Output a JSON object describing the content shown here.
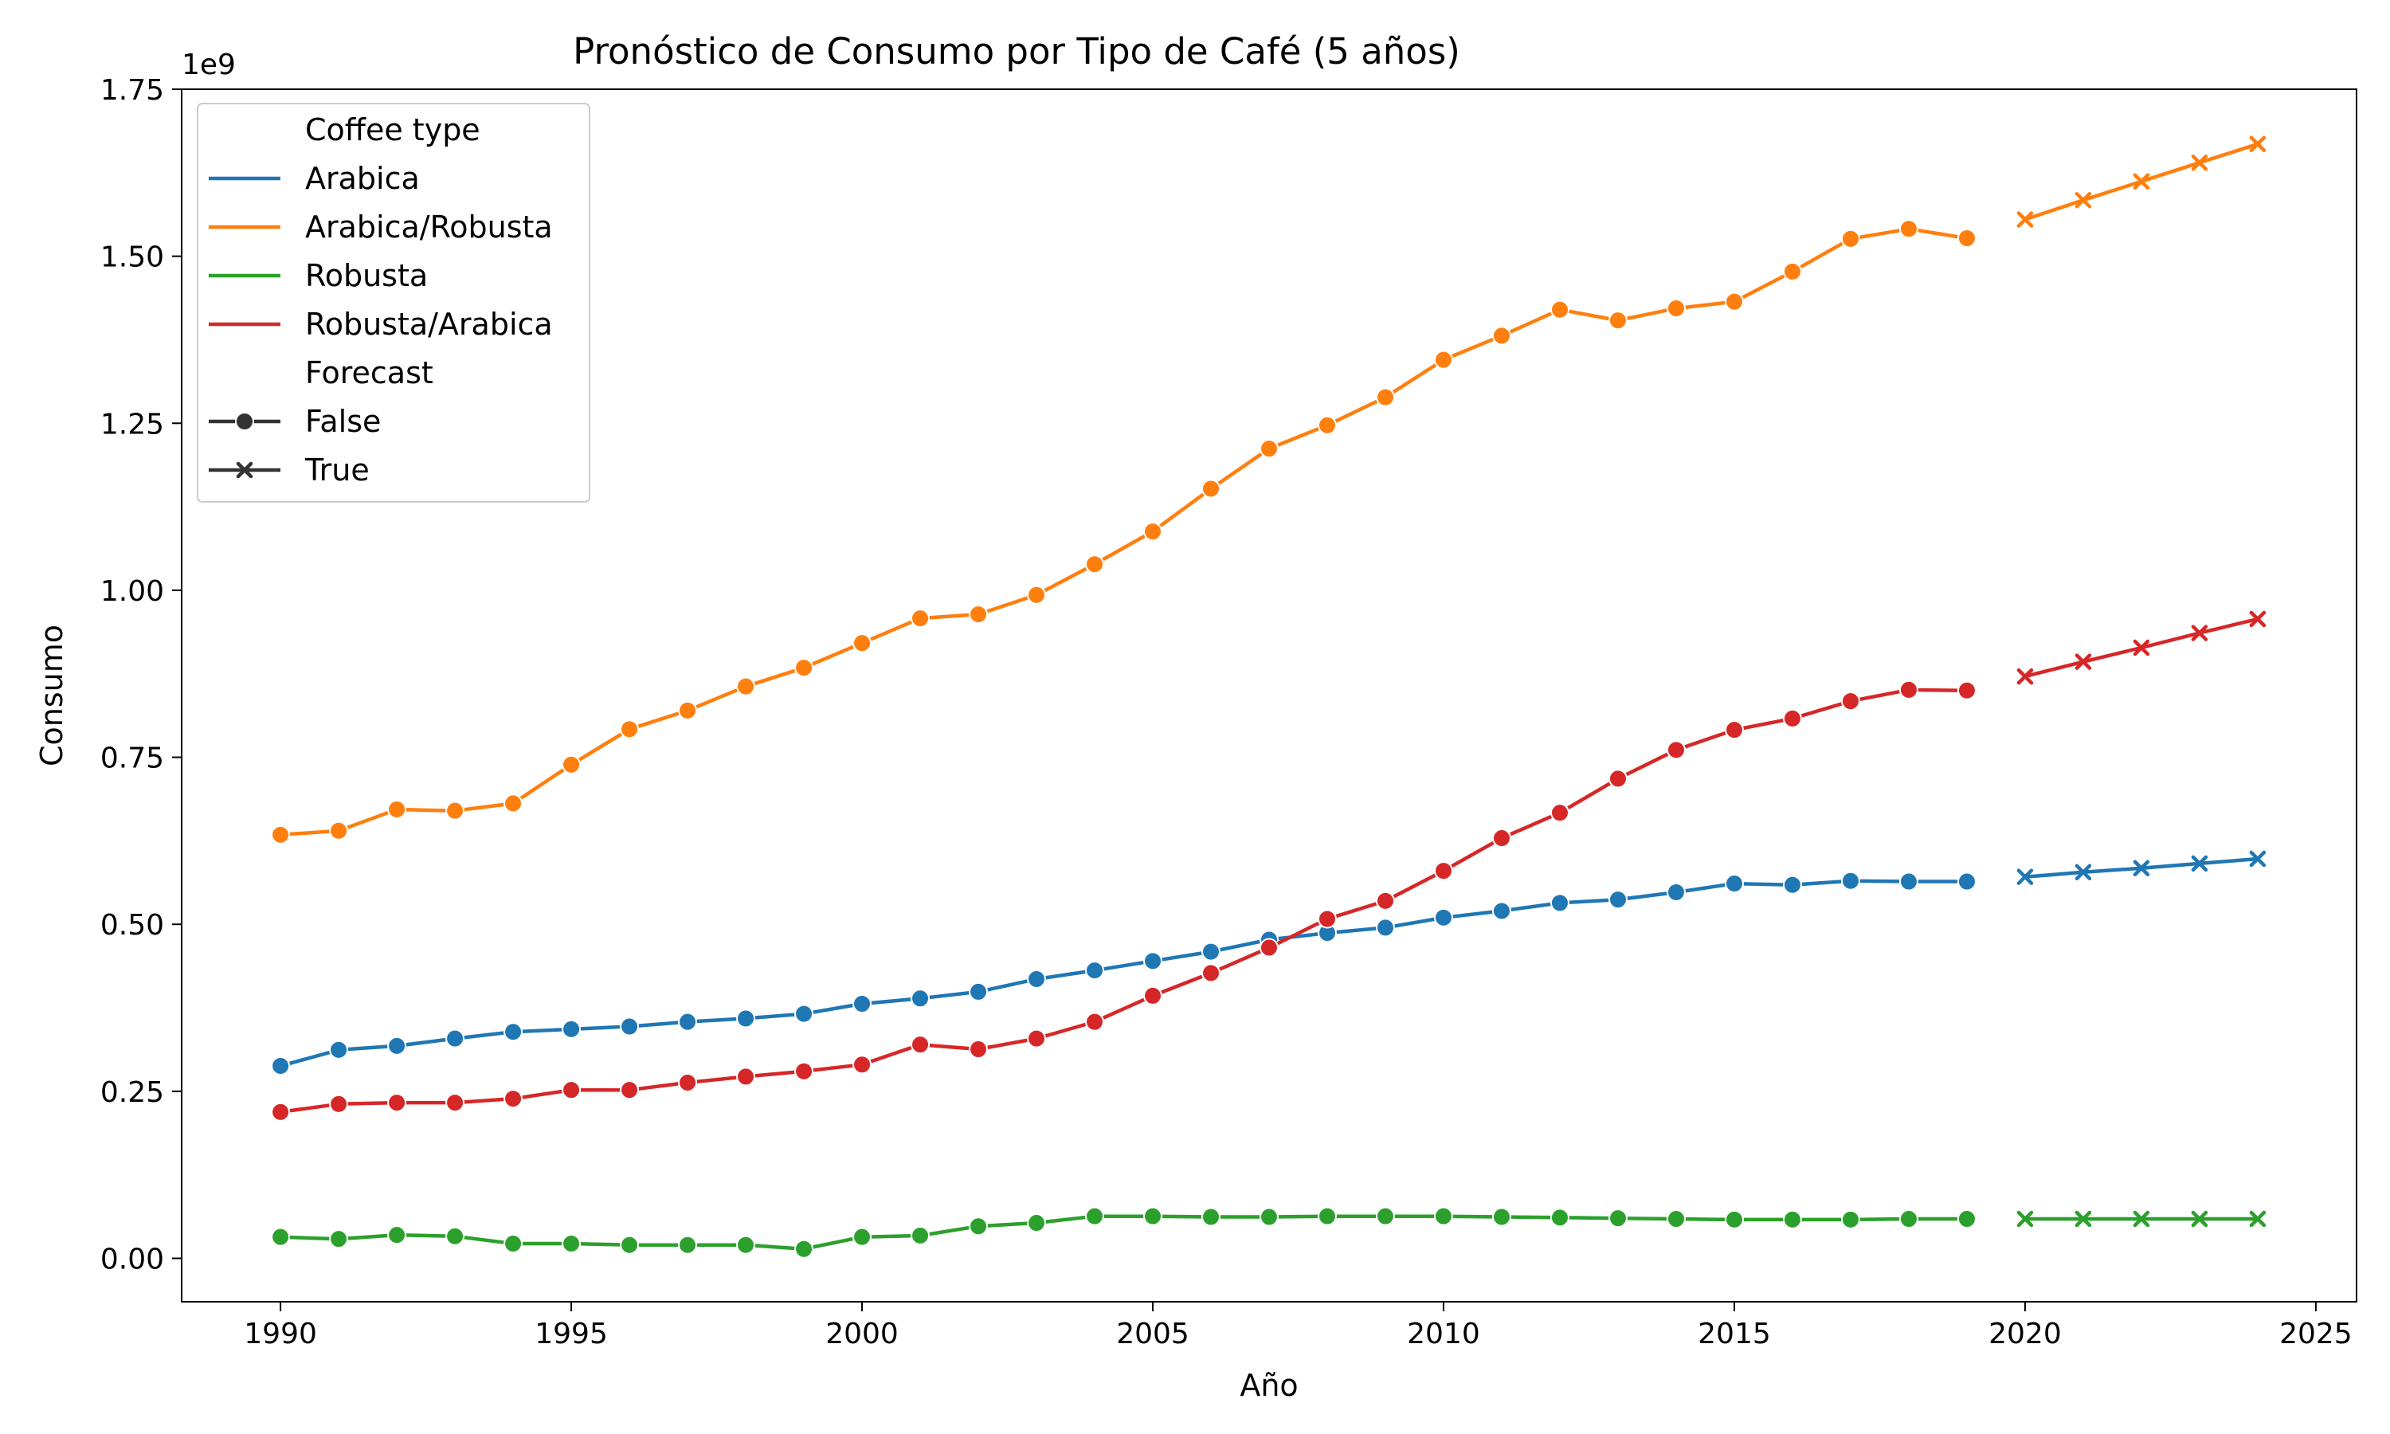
{
  "chart_data": {
    "type": "line",
    "title": "Pronóstico de Consumo por Tipo de Café (5 años)",
    "xlabel": "Año",
    "ylabel": "Consumo",
    "y_offset_label": "1e9",
    "xlim": [
      1988.3,
      2025.7
    ],
    "ylim": [
      -0.065,
      1.75
    ],
    "x_ticks": [
      1990,
      1995,
      2000,
      2005,
      2010,
      2015,
      2020,
      2025
    ],
    "y_ticks": [
      "0.00",
      "0.25",
      "0.50",
      "0.75",
      "1.00",
      "1.25",
      "1.50",
      "1.75"
    ],
    "grid": false,
    "legend_position": "top-left",
    "legend": {
      "hue_title": "Coffee type",
      "style_title": "Forecast",
      "style_entries": [
        {
          "label": "False",
          "marker": "circle"
        },
        {
          "label": "True",
          "marker": "x"
        }
      ]
    },
    "historical_x": [
      1990,
      1991,
      1992,
      1993,
      1994,
      1995,
      1996,
      1997,
      1998,
      1999,
      2000,
      2001,
      2002,
      2003,
      2004,
      2005,
      2006,
      2007,
      2008,
      2009,
      2010,
      2011,
      2012,
      2013,
      2014,
      2015,
      2016,
      2017,
      2018,
      2019
    ],
    "forecast_x": [
      2020,
      2021,
      2022,
      2023,
      2024
    ],
    "series": [
      {
        "name": "Arabica",
        "color": "#1f77b4",
        "historical": [
          0.288,
          0.312,
          0.318,
          0.329,
          0.339,
          0.343,
          0.347,
          0.354,
          0.359,
          0.366,
          0.381,
          0.389,
          0.399,
          0.418,
          0.431,
          0.445,
          0.459,
          0.477,
          0.487,
          0.495,
          0.51,
          0.52,
          0.532,
          0.537,
          0.548,
          0.561,
          0.559,
          0.565,
          0.564,
          0.564
        ],
        "forecast": [
          0.571,
          0.578,
          0.584,
          0.591,
          0.598
        ]
      },
      {
        "name": "Arabica/Robusta",
        "color": "#ff7f0e",
        "historical": [
          0.634,
          0.64,
          0.672,
          0.67,
          0.681,
          0.739,
          0.792,
          0.82,
          0.856,
          0.884,
          0.921,
          0.958,
          0.964,
          0.993,
          1.039,
          1.088,
          1.152,
          1.212,
          1.247,
          1.289,
          1.345,
          1.381,
          1.42,
          1.404,
          1.422,
          1.432,
          1.477,
          1.526,
          1.541,
          1.527
        ],
        "forecast": [
          1.555,
          1.584,
          1.612,
          1.64,
          1.668
        ]
      },
      {
        "name": "Robusta",
        "color": "#2ca02c",
        "historical": [
          0.032,
          0.029,
          0.035,
          0.033,
          0.022,
          0.022,
          0.02,
          0.02,
          0.02,
          0.014,
          0.032,
          0.034,
          0.048,
          0.053,
          0.063,
          0.063,
          0.062,
          0.062,
          0.063,
          0.063,
          0.063,
          0.062,
          0.061,
          0.06,
          0.059,
          0.058,
          0.058,
          0.058,
          0.059,
          0.059
        ],
        "forecast": [
          0.059,
          0.059,
          0.059,
          0.059,
          0.059
        ]
      },
      {
        "name": "Robusta/Arabica",
        "color": "#d62728",
        "historical": [
          0.219,
          0.231,
          0.233,
          0.233,
          0.239,
          0.252,
          0.252,
          0.263,
          0.272,
          0.28,
          0.29,
          0.32,
          0.313,
          0.329,
          0.354,
          0.393,
          0.427,
          0.465,
          0.508,
          0.535,
          0.58,
          0.629,
          0.667,
          0.718,
          0.761,
          0.791,
          0.808,
          0.834,
          0.851,
          0.85
        ],
        "forecast": [
          0.871,
          0.893,
          0.914,
          0.936,
          0.957
        ]
      }
    ]
  }
}
